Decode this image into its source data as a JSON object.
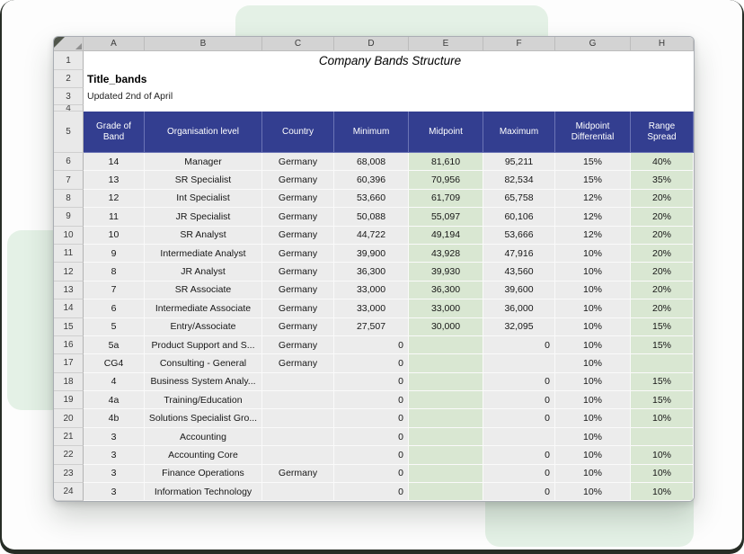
{
  "sheet": {
    "title": "Company Bands Structure",
    "doc_name": "Title_bands",
    "updated": "Updated 2nd of April",
    "columns": [
      "A",
      "B",
      "C",
      "D",
      "E",
      "F",
      "G",
      "H"
    ],
    "row_numbers": [
      1,
      2,
      3,
      4,
      5,
      6,
      7,
      8,
      9,
      10,
      11,
      12,
      13,
      14,
      15,
      16,
      17,
      18,
      19,
      20,
      21,
      22,
      23,
      24
    ],
    "headers": [
      "Grade of Band",
      "Organisation level",
      "Country",
      "Minimum",
      "Midpoint",
      "Maximum",
      "Midpoint Differential",
      "Range Spread"
    ],
    "green_columns": [
      4,
      7
    ],
    "rows": [
      [
        "14",
        "Manager",
        "Germany",
        "68,008",
        "81,610",
        "95,211",
        "15%",
        "40%"
      ],
      [
        "13",
        "SR Specialist",
        "Germany",
        "60,396",
        "70,956",
        "82,534",
        "15%",
        "35%"
      ],
      [
        "12",
        "Int Specialist",
        "Germany",
        "53,660",
        "61,709",
        "65,758",
        "12%",
        "20%"
      ],
      [
        "11",
        "JR Specialist",
        "Germany",
        "50,088",
        "55,097",
        "60,106",
        "12%",
        "20%"
      ],
      [
        "10",
        "SR Analyst",
        "Germany",
        "44,722",
        "49,194",
        "53,666",
        "12%",
        "20%"
      ],
      [
        "9",
        "Intermediate Analyst",
        "Germany",
        "39,900",
        "43,928",
        "47,916",
        "10%",
        "20%"
      ],
      [
        "8",
        "JR Analyst",
        "Germany",
        "36,300",
        "39,930",
        "43,560",
        "10%",
        "20%"
      ],
      [
        "7",
        "SR Associate",
        "Germany",
        "33,000",
        "36,300",
        "39,600",
        "10%",
        "20%"
      ],
      [
        "6",
        "Intermediate Associate",
        "Germany",
        "33,000",
        "33,000",
        "36,000",
        "10%",
        "20%"
      ],
      [
        "5",
        "Entry/Associate",
        "Germany",
        "27,507",
        "30,000",
        "32,095",
        "10%",
        "15%"
      ],
      [
        "5a",
        "Product Support and S...",
        "Germany",
        "0",
        "",
        "0",
        "10%",
        "15%"
      ],
      [
        "CG4",
        "Consulting - General",
        "Germany",
        "0",
        "",
        "",
        "10%",
        ""
      ],
      [
        "4",
        "Business System Analy...",
        "",
        "0",
        "",
        "0",
        "10%",
        "15%"
      ],
      [
        "4a",
        "Training/Education",
        "",
        "0",
        "",
        "0",
        "10%",
        "15%"
      ],
      [
        "4b",
        "Solutions Specialist Gro...",
        "",
        "0",
        "",
        "0",
        "10%",
        "10%"
      ],
      [
        "3",
        "Accounting",
        "",
        "0",
        "",
        "",
        "10%",
        ""
      ],
      [
        "3",
        "Accounting Core",
        "",
        "0",
        "",
        "0",
        "10%",
        "10%"
      ],
      [
        "3",
        "Finance Operations",
        "Germany",
        "0",
        "",
        "0",
        "10%",
        "10%"
      ],
      [
        "3",
        "Information Technology",
        "",
        "0",
        "",
        "0",
        "10%",
        "10%"
      ]
    ]
  },
  "colors": {
    "header_bg": "#333e90",
    "green_cell": "#d9e7d2",
    "gray_cell": "#ececec",
    "mint_decoration": "#e4f1e6"
  }
}
